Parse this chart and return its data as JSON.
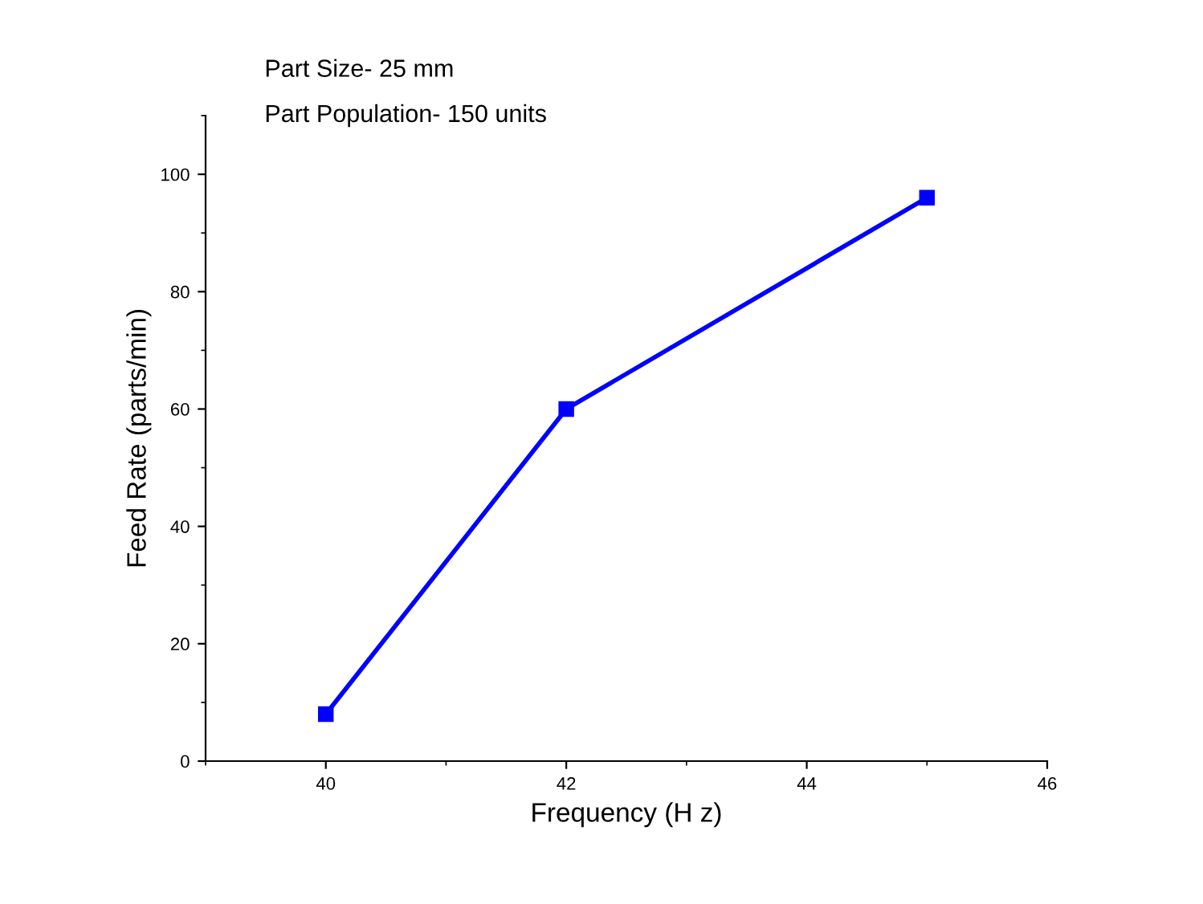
{
  "chart_data": {
    "type": "line",
    "xlabel": "Frequency (H z)",
    "ylabel": "Feed Rate (parts/min)",
    "annotations": [
      "Part Size- 25 mm",
      "Part Population- 150 units"
    ],
    "x": [
      40,
      42,
      45
    ],
    "series": [
      {
        "color": "#0000ff",
        "values": [
          8,
          60,
          96
        ]
      }
    ],
    "xlim": [
      39,
      46
    ],
    "xticks": [
      40,
      42,
      44,
      46
    ],
    "ylim": [
      0,
      110
    ],
    "yticks": [
      0,
      20,
      40,
      60,
      80,
      100
    ],
    "marker": "square",
    "line_style": "solid",
    "grid": false,
    "legend": false
  }
}
